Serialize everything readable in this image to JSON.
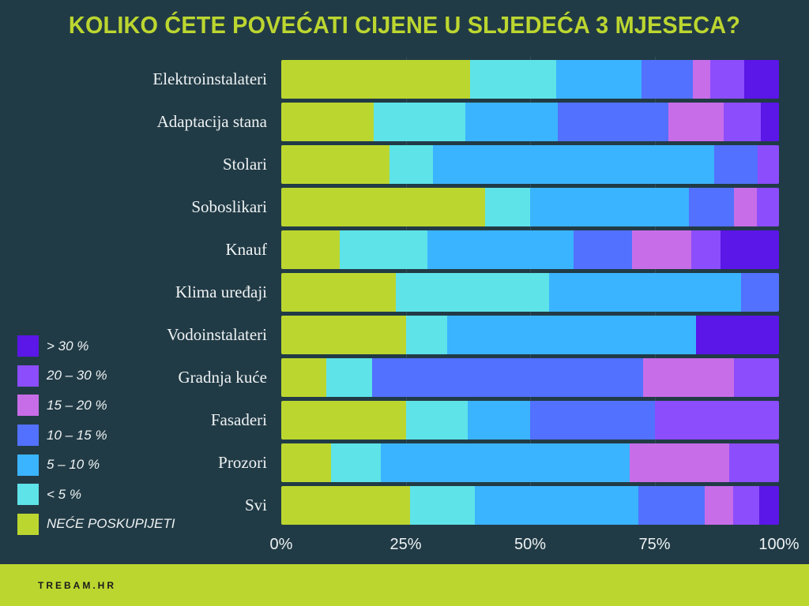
{
  "chart_data": {
    "type": "bar",
    "orientation": "horizontal",
    "stacked": true,
    "title": "KOLIKO ĆETE POVEĆATI CIJENE U SLJEDEĆA 3 MJESECA?",
    "xlabel": "",
    "ylabel": "",
    "xlim": [
      0,
      100
    ],
    "x_ticks": [
      "0%",
      "25%",
      "50%",
      "75%",
      "100%"
    ],
    "legend_position": "bottom-left",
    "categories": [
      "Elektroinstalateri",
      "Adaptacija stana",
      "Stolari",
      "Soboslikari",
      "Knauf",
      "Klima uređaji",
      "Vodoinstalateri",
      "Gradnja kuće",
      "Fasaderi",
      "Prozori",
      "Svi"
    ],
    "series": [
      {
        "name": "NEĆE POSKUPIJETI",
        "color": "#bcd630",
        "values": [
          37.9,
          18.5,
          21.7,
          40.9,
          11.8,
          23.1,
          25.0,
          9.1,
          25.0,
          10.0,
          25.8
        ]
      },
      {
        "name": "< 5 %",
        "color": "#5ee3e8",
        "values": [
          17.2,
          18.5,
          8.7,
          9.1,
          17.6,
          30.8,
          8.3,
          9.1,
          12.5,
          10.0,
          13.1
        ]
      },
      {
        "name": "5 – 10 %",
        "color": "#3bb4ff",
        "values": [
          17.2,
          18.5,
          56.5,
          31.8,
          29.4,
          38.5,
          50.0,
          0,
          12.5,
          50.0,
          32.8
        ]
      },
      {
        "name": "10 – 15 %",
        "color": "#5271ff",
        "values": [
          10.3,
          22.2,
          8.7,
          9.1,
          11.8,
          7.7,
          0,
          54.5,
          25.0,
          0,
          13.4
        ]
      },
      {
        "name": "15 – 20 %",
        "color": "#c86de8",
        "values": [
          3.4,
          11.1,
          0,
          4.5,
          11.8,
          0,
          0,
          18.2,
          0,
          20.0,
          5.7
        ]
      },
      {
        "name": "20 – 30 %",
        "color": "#8c4dfc",
        "values": [
          6.9,
          7.4,
          4.3,
          4.5,
          5.9,
          0,
          0,
          9.1,
          25.0,
          10.0,
          5.2
        ]
      },
      {
        "name": "> 30 %",
        "color": "#5b16e8",
        "values": [
          6.9,
          3.7,
          0,
          0,
          11.8,
          0,
          16.7,
          0,
          0,
          0,
          4.0
        ]
      }
    ]
  },
  "footer": {
    "brand": "TREBAM.HR"
  }
}
